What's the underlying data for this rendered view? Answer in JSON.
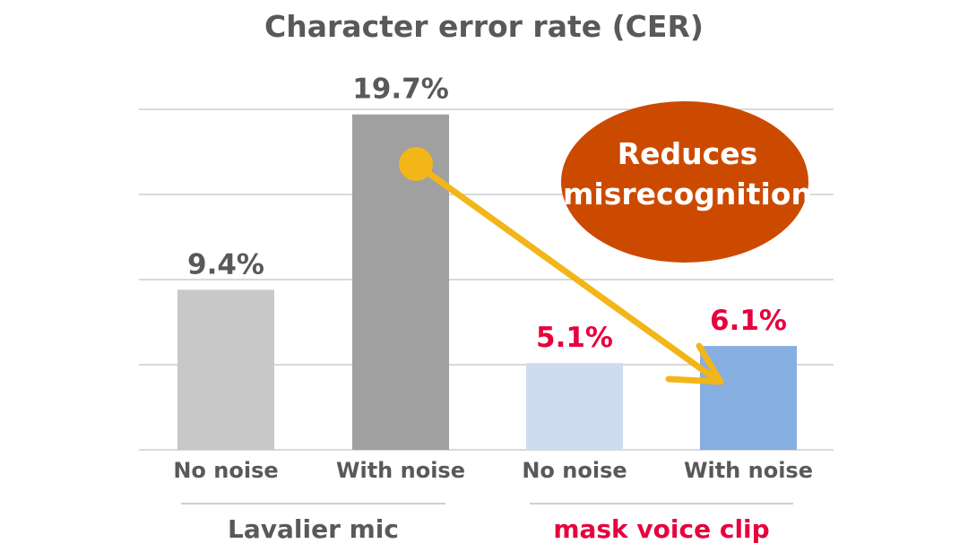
{
  "chart_data": {
    "type": "bar",
    "title": "Character error rate (CER)",
    "xlabel": "",
    "ylabel": "",
    "ylim": [
      0,
      20
    ],
    "grid": true,
    "legend": "none",
    "categories": [
      "No noise",
      "With noise",
      "No noise",
      "With noise"
    ],
    "values": [
      9.4,
      19.7,
      5.1,
      6.1
    ],
    "value_labels": [
      "9.4%",
      "19.7%",
      "5.1%",
      "6.1%"
    ],
    "bar_colors": [
      "#c8c8c8",
      "#a0a0a0",
      "#cfdcf0",
      "#86aee0"
    ],
    "value_label_colors": [
      "#595959",
      "#595959",
      "#e8003d",
      "#e8003d"
    ],
    "groups": [
      {
        "label": "Lavalier mic",
        "color": "#595959",
        "categories": [
          0,
          1
        ]
      },
      {
        "label": "mask voice clip",
        "color": "#e8003d",
        "categories": [
          2,
          3
        ]
      }
    ],
    "annotation": {
      "lines": [
        "Reduces",
        "misrecognition"
      ],
      "bubble_color": "#cc4a00",
      "arrow_color": "#f2b619"
    }
  }
}
